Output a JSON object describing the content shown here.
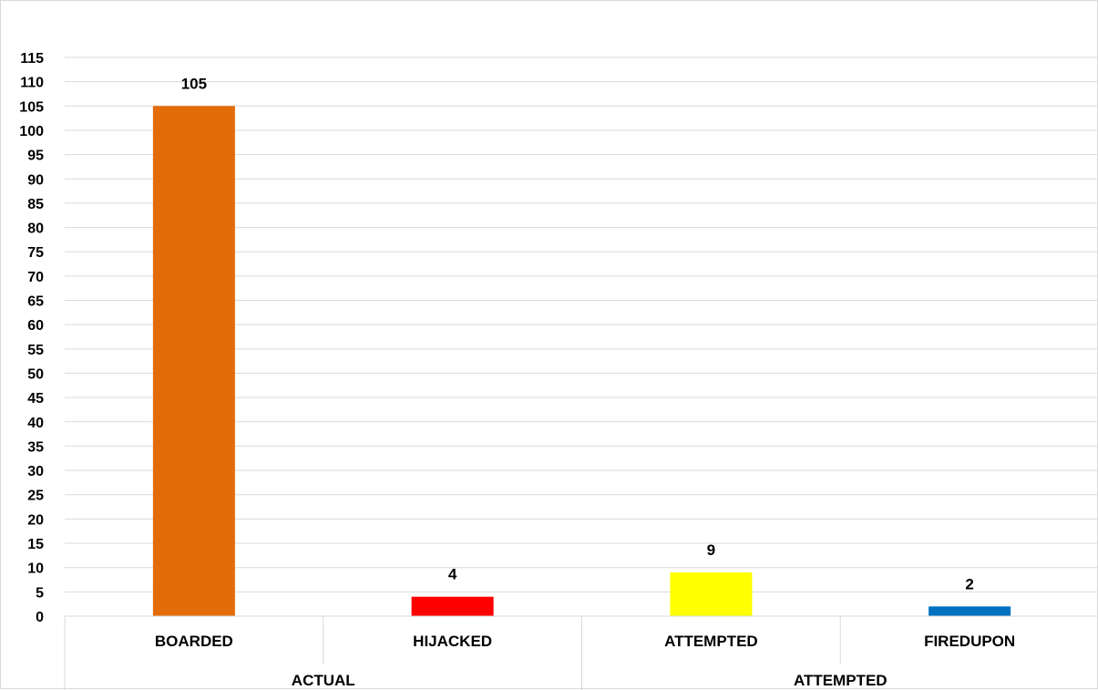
{
  "chart_data": {
    "type": "bar",
    "categories": [
      "BOARDED",
      "HIJACKED",
      "ATTEMPTED",
      "FIREDUPON"
    ],
    "groups": [
      {
        "label": "ACTUAL",
        "categories": [
          "BOARDED",
          "HIJACKED"
        ]
      },
      {
        "label": "ATTEMPTED",
        "categories": [
          "ATTEMPTED",
          "FIREDUPON"
        ]
      }
    ],
    "values": [
      105,
      4,
      9,
      2
    ],
    "colors": [
      "#E36C09",
      "#FF0000",
      "#FFFF00",
      "#0070C0"
    ],
    "data_labels": [
      "105",
      "4",
      "9",
      "2"
    ],
    "yticks": [
      "0",
      "5",
      "10",
      "15",
      "20",
      "25",
      "30",
      "35",
      "40",
      "45",
      "50",
      "55",
      "60",
      "65",
      "70",
      "75",
      "80",
      "85",
      "90",
      "95",
      "100",
      "105",
      "110",
      "115"
    ],
    "ylim": [
      0,
      115
    ],
    "ystep": 5,
    "grid": true,
    "legend": "none",
    "title": "",
    "xlabel": "",
    "ylabel": ""
  }
}
